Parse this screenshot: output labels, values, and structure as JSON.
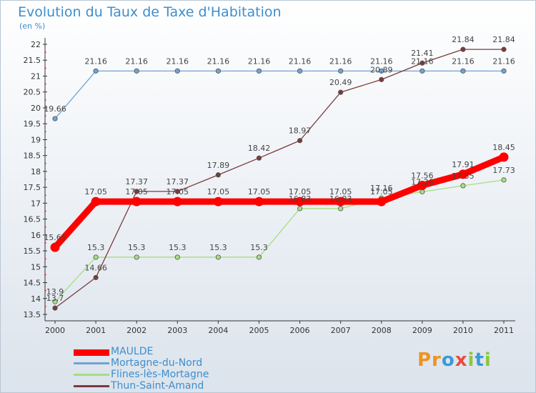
{
  "chart_data": {
    "type": "line",
    "title": "Evolution du Taux de Taxe d'Habitation",
    "unit_label": "(en %)",
    "x": [
      "2000",
      "2001",
      "2002",
      "2003",
      "2004",
      "2005",
      "2006",
      "2007",
      "2008",
      "2009",
      "2010",
      "2011"
    ],
    "ylim": [
      13.5,
      22
    ],
    "yticks": [
      "13.5",
      "14",
      "14.5",
      "15",
      "15.5",
      "16",
      "16.5",
      "17",
      "17.5",
      "18",
      "18.5",
      "19",
      "19.5",
      "20",
      "20.5",
      "21",
      "21.5",
      "22"
    ],
    "grid": false,
    "legend_position": "bottom-left",
    "series": [
      {
        "name": "MAULDE",
        "color": "#ff0000",
        "emphasis": true,
        "values": [
          15.61,
          17.05,
          17.05,
          17.05,
          17.05,
          17.05,
          17.05,
          17.05,
          17.05,
          17.56,
          17.91,
          18.45
        ],
        "labels": [
          "15.61",
          "17.05",
          "17.05",
          "17.05",
          "17.05",
          "17.05",
          "17.05",
          "17.05",
          "17.05",
          "17.56",
          "17.91",
          "18.45"
        ]
      },
      {
        "name": "Mortagne-du-Nord",
        "color": "#6fa4d2",
        "values": [
          19.66,
          21.16,
          21.16,
          21.16,
          21.16,
          21.16,
          21.16,
          21.16,
          21.16,
          21.16,
          21.16,
          21.16
        ],
        "labels": [
          "19.66",
          "21.16",
          "21.16",
          "21.16",
          "21.16",
          "21.16",
          "21.16",
          "21.16",
          "21.16",
          "21.16",
          "21.16",
          "21.16"
        ]
      },
      {
        "name": "Flines-lès-Mortagne",
        "color": "#a6dd82",
        "values": [
          13.9,
          15.3,
          15.3,
          15.3,
          15.3,
          15.3,
          16.83,
          16.83,
          17.16,
          17.36,
          17.55,
          17.73
        ],
        "labels": [
          "13.9",
          "15.3",
          "15.3",
          "15.3",
          "15.3",
          "15.3",
          "16.83",
          "16.83",
          "17.16",
          "17.36",
          "17.55",
          "17.73"
        ]
      },
      {
        "name": "Thun-Saint-Amand",
        "color": "#7a3b3b",
        "values": [
          13.7,
          14.66,
          17.37,
          17.37,
          17.89,
          18.42,
          18.97,
          20.49,
          20.89,
          21.41,
          21.84,
          21.84
        ],
        "labels": [
          "13.7",
          "14.66",
          "17.37",
          "17.37",
          "17.89",
          "18.42",
          "18.97",
          "20.49",
          "20.89",
          "21.41",
          "21.84",
          "21.84"
        ]
      }
    ]
  },
  "logo": {
    "p1": "Pr",
    "p2": "o",
    "p3": "x",
    "p4": "i",
    "p5": "t",
    "p6": "i"
  }
}
